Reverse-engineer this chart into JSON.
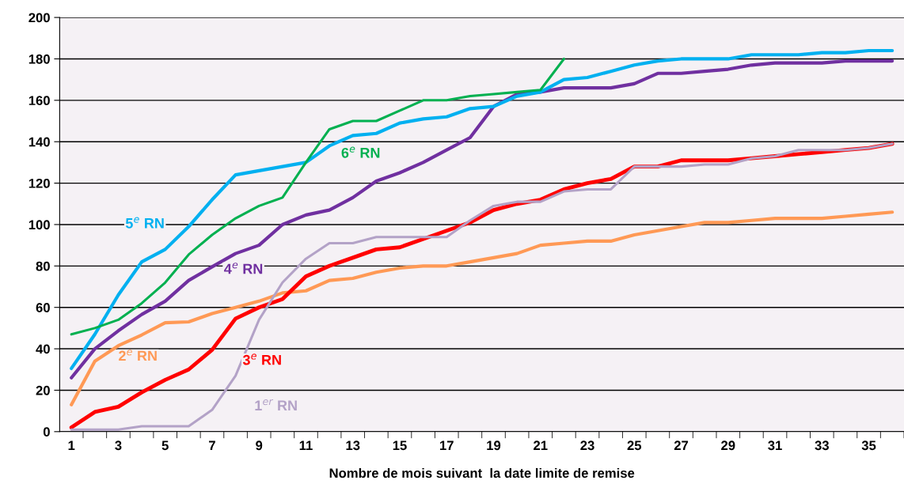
{
  "chart_data": {
    "type": "line",
    "xlabel": "Nombre de mois suivant  la date limite de remise",
    "categories": [
      "1",
      null,
      "3",
      null,
      "5",
      null,
      "7",
      null,
      "9",
      null,
      "11",
      null,
      "13",
      null,
      "15",
      null,
      "17",
      null,
      "19",
      null,
      "21",
      null,
      "23",
      null,
      "25",
      null,
      "27",
      null,
      "29",
      null,
      "31",
      null,
      "33",
      null,
      "35",
      null
    ],
    "ylim": [
      0,
      200
    ],
    "yticks": [
      0,
      20,
      40,
      60,
      80,
      100,
      120,
      140,
      160,
      180,
      200
    ],
    "grid": "y",
    "legend": false,
    "marker": "none",
    "line_style": "solid",
    "series": [
      {
        "name": "1$^{er}$ RN",
        "color": "#b3a2c7",
        "values": [
          1,
          1,
          1,
          2.6,
          2.6,
          2.6,
          10.5,
          27,
          54,
          72,
          83.5,
          91,
          91,
          94,
          94,
          94,
          94,
          102,
          109,
          111,
          111,
          116,
          117,
          117,
          128,
          128,
          128,
          129,
          129,
          132,
          133,
          136,
          136,
          136,
          137,
          139
        ]
      },
      {
        "name": "2$^{e}$ RN",
        "color": "#ff9955",
        "values": [
          13,
          34,
          41.5,
          46.7,
          52.6,
          53,
          57,
          60,
          63,
          67,
          68,
          73,
          74,
          77,
          79,
          80,
          80,
          82,
          84,
          86,
          90,
          91,
          92,
          92,
          95,
          97,
          99,
          101,
          101,
          102,
          103,
          103,
          103,
          104,
          105,
          106
        ]
      },
      {
        "name": "3$^{e}$ RN",
        "color": "#ff0000",
        "values": [
          2,
          9.5,
          12,
          19,
          25,
          30,
          39.5,
          54.6,
          60,
          64,
          75,
          80,
          84,
          88,
          89,
          93,
          97,
          101,
          107,
          110,
          112,
          117,
          120,
          122,
          128,
          128,
          131,
          131,
          131,
          132,
          133,
          134,
          135,
          136,
          137,
          139
        ]
      },
      {
        "name": "4$^{e}$ RN",
        "color": "#7030a0",
        "values": [
          26,
          40,
          48.7,
          56.6,
          63,
          73,
          79.6,
          86,
          90,
          100,
          104.6,
          107,
          113,
          121,
          125,
          130,
          136,
          142,
          157,
          163,
          164,
          166,
          166,
          166,
          168,
          173,
          173,
          174,
          175,
          177,
          178,
          178,
          178,
          179,
          179,
          179
        ]
      },
      {
        "name": "5$^{e}$ RN",
        "color": "#00b0f0",
        "values": [
          30.5,
          47,
          66,
          82,
          88,
          99,
          112,
          124,
          126,
          128,
          130,
          138,
          143,
          144,
          149,
          151,
          152,
          156,
          157,
          162,
          164,
          170,
          171,
          174,
          177,
          179,
          180,
          180,
          180,
          182,
          182,
          182,
          183,
          183,
          184,
          184
        ]
      },
      {
        "name": "6$^{e}$ RN",
        "color": "#00b050",
        "values": [
          47,
          50,
          54,
          62,
          72,
          85.5,
          95,
          103,
          109,
          113,
          130,
          146,
          150,
          150,
          155,
          160,
          160,
          162,
          163,
          164,
          165,
          180,
          null,
          null,
          null,
          null,
          null,
          null,
          null,
          null,
          null,
          null,
          null,
          null,
          null,
          null
        ]
      }
    ]
  }
}
